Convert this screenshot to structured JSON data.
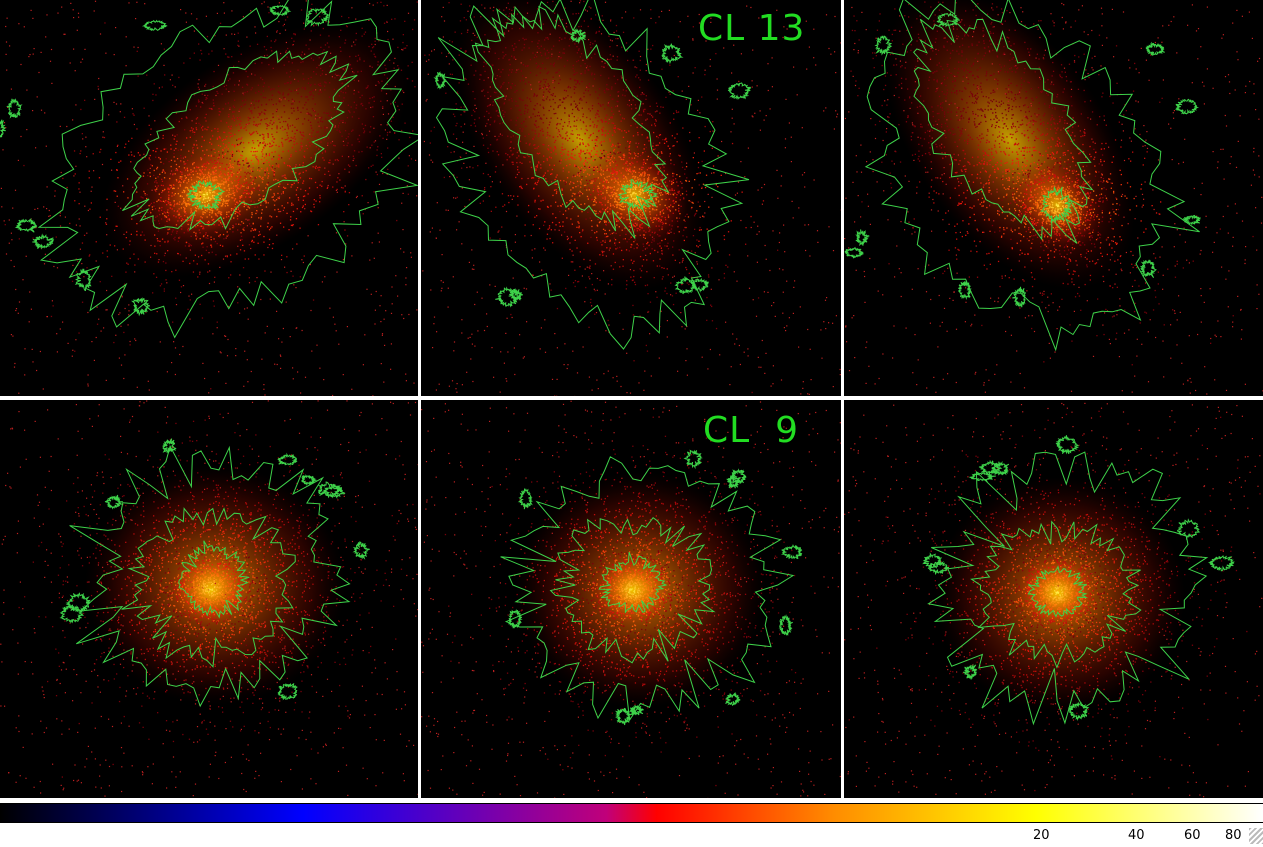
{
  "panels": {
    "top_label": "CL 13",
    "bottom_label": "CL  9"
  },
  "colorbar": {
    "ticks": [
      "20",
      "40",
      "60",
      "80"
    ],
    "gradient_colors": [
      "#000000",
      "#0000ff",
      "#c0007a",
      "#ff0000",
      "#ff8c00",
      "#ffff00",
      "#ffffff"
    ]
  },
  "colors": {
    "contour": "#3ed24a",
    "label": "#22dd22"
  }
}
